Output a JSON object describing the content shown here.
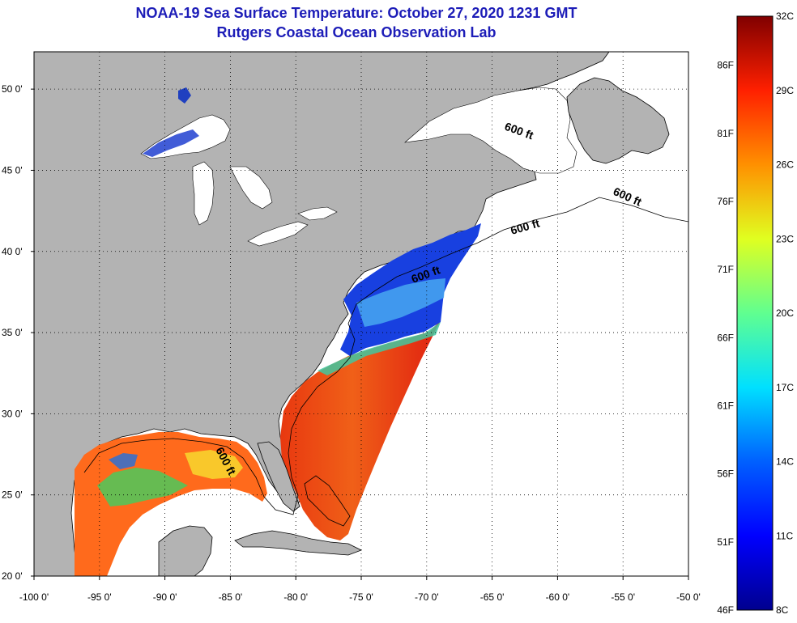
{
  "title": {
    "line1": "NOAA-19 Sea Surface Temperature:  October 27, 2020 1231 GMT",
    "line2": "Rutgers Coastal Ocean Observation Lab"
  },
  "map": {
    "lon_range": [
      -100,
      -50
    ],
    "lat_range": [
      20,
      52.3
    ],
    "grid": true,
    "lon_ticks": [
      {
        "value": -100,
        "label": "-100 0'"
      },
      {
        "value": -95,
        "label": "-95 0'"
      },
      {
        "value": -90,
        "label": "-90 0'"
      },
      {
        "value": -85,
        "label": "-85 0'"
      },
      {
        "value": -80,
        "label": "-80 0'"
      },
      {
        "value": -75,
        "label": "-75 0'"
      },
      {
        "value": -70,
        "label": "-70 0'"
      },
      {
        "value": -65,
        "label": "-65 0'"
      },
      {
        "value": -60,
        "label": "-60 0'"
      },
      {
        "value": -55,
        "label": "-55 0'"
      },
      {
        "value": -50,
        "label": "-50 0'"
      }
    ],
    "lat_ticks": [
      {
        "value": 20,
        "label": "20 0'"
      },
      {
        "value": 25,
        "label": "25 0'"
      },
      {
        "value": 30,
        "label": "30 0'"
      },
      {
        "value": 35,
        "label": "35 0'"
      },
      {
        "value": 40,
        "label": "40 0'"
      },
      {
        "value": 45,
        "label": "45 0'"
      },
      {
        "value": 50,
        "label": "50 0'"
      }
    ],
    "contour_labels": [
      "600 ft",
      "600 ft",
      "600 ft",
      "600 ft",
      "600 ft"
    ],
    "colors": {
      "land": "#b3b3b3",
      "no_data": "#ffffff",
      "water_bodies": "#ffffff"
    }
  },
  "colorbar": {
    "celsius_labels": [
      "32C",
      "29C",
      "26C",
      "23C",
      "20C",
      "17C",
      "14C",
      "11C",
      "8C"
    ],
    "celsius_values": [
      32,
      29,
      26,
      23,
      20,
      17,
      14,
      11,
      8
    ],
    "fahrenheit_labels": [
      "86F",
      "81F",
      "76F",
      "71F",
      "66F",
      "61F",
      "56F",
      "51F",
      "46F"
    ],
    "fahrenheit_values": [
      86,
      81,
      76,
      71,
      66,
      61,
      56,
      51,
      46
    ],
    "range_c": [
      8,
      32
    ],
    "range_f": [
      46,
      89.6
    ],
    "colormap": [
      "#00008f",
      "#0000ff",
      "#0080ff",
      "#00ffff",
      "#80ff80",
      "#ffff00",
      "#ff8000",
      "#ff0000",
      "#800000"
    ]
  }
}
